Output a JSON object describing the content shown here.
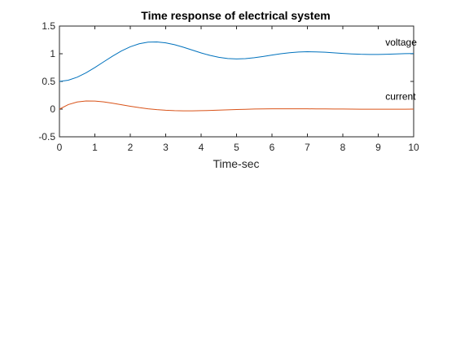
{
  "chart_data": {
    "type": "line",
    "title": "Time response of electrical system",
    "xlabel": "Time-sec",
    "ylabel": "",
    "xlim": [
      0,
      10
    ],
    "ylim": [
      -0.5,
      1.5
    ],
    "xticks": [
      0,
      1,
      2,
      3,
      4,
      5,
      6,
      7,
      8,
      9,
      10
    ],
    "yticks": [
      -0.5,
      0,
      0.5,
      1,
      1.5
    ],
    "grid": false,
    "series": [
      {
        "color": "#0072BD",
        "x": [
          0,
          0.25,
          0.5,
          0.75,
          1,
          1.25,
          1.5,
          1.75,
          2,
          2.25,
          2.5,
          2.75,
          3,
          3.25,
          3.5,
          3.75,
          4,
          4.25,
          4.5,
          4.75,
          5,
          5.25,
          5.5,
          5.75,
          6,
          6.25,
          6.5,
          6.75,
          7,
          7.25,
          7.5,
          7.75,
          8,
          8.25,
          8.5,
          8.75,
          9,
          9.25,
          9.5,
          9.75,
          10
        ],
        "y": [
          0.5,
          0.522,
          0.576,
          0.655,
          0.751,
          0.855,
          0.957,
          1.05,
          1.126,
          1.18,
          1.209,
          1.214,
          1.197,
          1.163,
          1.117,
          1.066,
          1.015,
          0.97,
          0.935,
          0.914,
          0.907,
          0.912,
          0.928,
          0.951,
          0.976,
          1.0,
          1.019,
          1.031,
          1.036,
          1.034,
          1.027,
          1.017,
          1.006,
          0.997,
          0.99,
          0.987,
          0.988,
          0.991,
          0.996,
          1.001,
          1.004
        ]
      },
      {
        "color": "#D95319",
        "x": [
          0,
          0.25,
          0.5,
          0.75,
          1,
          1.25,
          1.5,
          1.75,
          2,
          2.25,
          2.5,
          2.75,
          3,
          3.25,
          3.5,
          3.75,
          4,
          4.25,
          4.5,
          4.75,
          5,
          5.25,
          5.5,
          5.75,
          6,
          6.25,
          6.5,
          6.75,
          7,
          7.25,
          7.5,
          7.75,
          8,
          8.25,
          8.5,
          8.75,
          9,
          9.25,
          9.5,
          9.75,
          10
        ],
        "y": [
          0,
          0.082,
          0.128,
          0.147,
          0.145,
          0.13,
          0.106,
          0.079,
          0.052,
          0.027,
          0.006,
          -0.01,
          -0.021,
          -0.028,
          -0.031,
          -0.031,
          -0.028,
          -0.024,
          -0.018,
          -0.013,
          -0.008,
          -0.003,
          0.001,
          0.004,
          0.005,
          0.006,
          0.006,
          0.006,
          0.005,
          0.004,
          0.003,
          0.002,
          0.001,
          0.0,
          -0.001,
          -0.001,
          -0.001,
          -0.001,
          -0.001,
          -0.001,
          0.0
        ]
      }
    ],
    "annotations": [
      {
        "text": "voltage",
        "x": 9.2,
        "y": 1.15
      },
      {
        "text": "current",
        "x": 9.2,
        "y": 0.17
      }
    ]
  }
}
